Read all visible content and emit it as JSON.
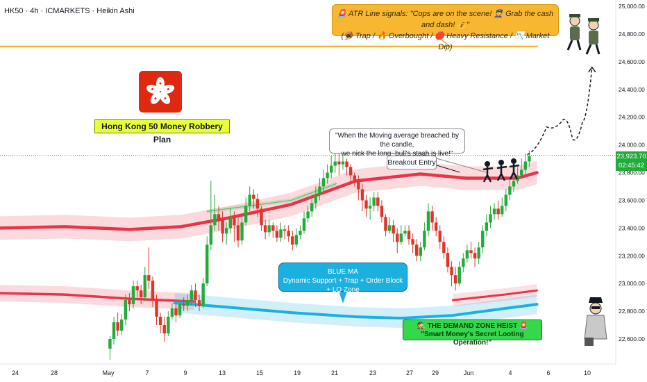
{
  "header": {
    "symbol": "HK50 · 4h · ICMARKETS · Heikin Ashi"
  },
  "price_tag": {
    "price": "23,923.70",
    "countdown": "02:45:42"
  },
  "notes": {
    "atr_line1": "🚨 ATR Line signals: \"Cops are on the scene! 👮 Grab the cash and dash! 💰\"",
    "atr_line2": "(🪤 Trap / 🔥 Overbought / 🛑 Heavy Resistance / 📉 Market Dip)",
    "plan_label": "Hong Kong 50 Money Robbery Plan",
    "ma_note_line1": "\"When the Moving average breached by the candle,",
    "ma_note_line2": "we nick the long−bull's stash is live!\"",
    "breakout": "Breakout Entry",
    "blue_ma_title": "BLUE MA",
    "blue_ma_body": "Dynamic Support + Trap + Order Block + LQ Zone",
    "demand_line1": "🕵 THE DEMAND ZONE HEIST 🚨",
    "demand_line2": "\"Smart Money's Secret Looting Operation!\""
  },
  "colors": {
    "bull": "#22ab3a",
    "bear": "#e0342a",
    "red_ma": "#e8344a",
    "blue_ma": "#1ab0e0",
    "atr_line": "#f7b731",
    "current_price_line": "#22ab3a"
  },
  "chart_data": {
    "type": "candlestick",
    "ylim": [
      22450,
      25050
    ],
    "y_ticks": [
      "25,000.00",
      "24,800.00",
      "24,600.00",
      "24,400.00",
      "24,200.00",
      "24,000.00",
      "23,800.00",
      "23,600.00",
      "23,400.00",
      "23,200.00",
      "23,000.00",
      "22,800.00",
      "22,600.00"
    ],
    "y_tick_values": [
      25000,
      24800,
      24600,
      24400,
      24200,
      24000,
      23800,
      23600,
      23400,
      23200,
      23000,
      22800,
      22600
    ],
    "x_ticks": [
      "24",
      "28",
      "May",
      "7",
      "9",
      "13",
      "15",
      "19",
      "21",
      "23",
      "27",
      "29",
      "Jun",
      "4",
      "6",
      "10"
    ],
    "atr_level": 24710,
    "current_price": 23923.7,
    "red_ma": [
      [
        0,
        23400
      ],
      [
        0.1,
        23410
      ],
      [
        0.2,
        23390
      ],
      [
        0.28,
        23410
      ],
      [
        0.35,
        23470
      ],
      [
        0.45,
        23570
      ],
      [
        0.55,
        23740
      ],
      [
        0.65,
        23790
      ],
      [
        0.72,
        23760
      ],
      [
        0.8,
        23760
      ],
      [
        0.83,
        23800
      ]
    ],
    "blue_ma": [
      [
        0.27,
        22860
      ],
      [
        0.35,
        22830
      ],
      [
        0.45,
        22790
      ],
      [
        0.55,
        22760
      ],
      [
        0.62,
        22750
      ],
      [
        0.7,
        22770
      ],
      [
        0.78,
        22820
      ],
      [
        0.83,
        22850
      ]
    ],
    "projection": [
      [
        0.815,
        23930
      ],
      [
        0.845,
        24130
      ],
      [
        0.87,
        24180
      ],
      [
        0.885,
        24040
      ],
      [
        0.9,
        24160
      ],
      [
        0.915,
        24560
      ]
    ],
    "candles": [
      [
        0.17,
        22530,
        22600,
        22450,
        22620
      ],
      [
        0.176,
        22600,
        22720,
        22560,
        22760
      ],
      [
        0.182,
        22720,
        22660,
        22620,
        22790
      ],
      [
        0.188,
        22660,
        22740,
        22630,
        22780
      ],
      [
        0.194,
        22740,
        22880,
        22700,
        22920
      ],
      [
        0.2,
        22880,
        22850,
        22800,
        22930
      ],
      [
        0.206,
        22850,
        22980,
        22820,
        23020
      ],
      [
        0.212,
        22980,
        22950,
        22900,
        23020
      ],
      [
        0.218,
        22950,
        22900,
        22850,
        22990
      ],
      [
        0.224,
        22900,
        23060,
        22870,
        23120
      ],
      [
        0.23,
        23060,
        23020,
        22960,
        23260
      ],
      [
        0.236,
        23020,
        22880,
        22830,
        23050
      ],
      [
        0.242,
        22880,
        22760,
        22700,
        22920
      ],
      [
        0.248,
        22760,
        22700,
        22640,
        22790
      ],
      [
        0.254,
        22700,
        22640,
        22580,
        22760
      ],
      [
        0.26,
        22640,
        22760,
        22620,
        22800
      ],
      [
        0.266,
        22760,
        22820,
        22740,
        22860
      ],
      [
        0.272,
        22820,
        22770,
        22720,
        22860
      ],
      [
        0.278,
        22770,
        22850,
        22750,
        22880
      ],
      [
        0.284,
        22850,
        22840,
        22800,
        22900
      ],
      [
        0.29,
        22840,
        22880,
        22800,
        22920
      ],
      [
        0.296,
        22880,
        22950,
        22840,
        22990
      ],
      [
        0.302,
        22950,
        22880,
        22830,
        23000
      ],
      [
        0.308,
        22880,
        22840,
        22800,
        22920
      ],
      [
        0.314,
        22840,
        23000,
        22820,
        23040
      ],
      [
        0.32,
        23000,
        23280,
        22980,
        23340
      ],
      [
        0.326,
        23280,
        23420,
        23240,
        23740
      ],
      [
        0.332,
        23420,
        23500,
        23380,
        23640
      ],
      [
        0.338,
        23500,
        23460,
        23380,
        23560
      ],
      [
        0.344,
        23460,
        23360,
        23300,
        23520
      ],
      [
        0.35,
        23360,
        23400,
        23280,
        23440
      ],
      [
        0.356,
        23400,
        23480,
        23360,
        23540
      ],
      [
        0.362,
        23480,
        23420,
        23300,
        23520
      ],
      [
        0.368,
        23420,
        23310,
        23260,
        23480
      ],
      [
        0.374,
        23310,
        23440,
        23280,
        23500
      ],
      [
        0.38,
        23440,
        23560,
        23420,
        23620
      ],
      [
        0.386,
        23560,
        23640,
        23520,
        23700
      ],
      [
        0.392,
        23640,
        23610,
        23540,
        23680
      ],
      [
        0.398,
        23610,
        23540,
        23480,
        23650
      ],
      [
        0.404,
        23540,
        23420,
        23380,
        23560
      ],
      [
        0.41,
        23420,
        23370,
        23320,
        23460
      ],
      [
        0.416,
        23370,
        23420,
        23340,
        23460
      ],
      [
        0.422,
        23420,
        23380,
        23330,
        23440
      ],
      [
        0.428,
        23380,
        23330,
        23300,
        23420
      ],
      [
        0.434,
        23330,
        23390,
        23300,
        23440
      ],
      [
        0.44,
        23390,
        23380,
        23320,
        23420
      ],
      [
        0.446,
        23380,
        23340,
        23300,
        23420
      ],
      [
        0.452,
        23340,
        23280,
        23240,
        23380
      ],
      [
        0.458,
        23280,
        23350,
        23260,
        23400
      ],
      [
        0.464,
        23350,
        23380,
        23320,
        23420
      ],
      [
        0.47,
        23380,
        23470,
        23360,
        23520
      ],
      [
        0.476,
        23470,
        23520,
        23440,
        23560
      ],
      [
        0.482,
        23520,
        23580,
        23480,
        23640
      ],
      [
        0.488,
        23580,
        23640,
        23540,
        23700
      ],
      [
        0.494,
        23640,
        23700,
        23600,
        23760
      ],
      [
        0.5,
        23700,
        23760,
        23660,
        23820
      ],
      [
        0.506,
        23760,
        23800,
        23720,
        23860
      ],
      [
        0.512,
        23800,
        23850,
        23760,
        23920
      ],
      [
        0.518,
        23850,
        23880,
        23800,
        23960
      ],
      [
        0.524,
        23880,
        23860,
        23780,
        23940
      ],
      [
        0.53,
        23860,
        23880,
        23820,
        23920
      ],
      [
        0.536,
        23880,
        23840,
        23780,
        23900
      ],
      [
        0.542,
        23840,
        23780,
        23740,
        23860
      ],
      [
        0.548,
        23780,
        23740,
        23700,
        23800
      ],
      [
        0.554,
        23740,
        23680,
        23600,
        23780
      ],
      [
        0.56,
        23680,
        23600,
        23520,
        23720
      ],
      [
        0.566,
        23600,
        23540,
        23480,
        23640
      ],
      [
        0.572,
        23540,
        23560,
        23460,
        23620
      ],
      [
        0.578,
        23560,
        23620,
        23520,
        23660
      ],
      [
        0.584,
        23620,
        23560,
        23520,
        23660
      ],
      [
        0.59,
        23560,
        23480,
        23440,
        23600
      ],
      [
        0.596,
        23480,
        23380,
        23340,
        23500
      ],
      [
        0.602,
        23380,
        23420,
        23360,
        23480
      ],
      [
        0.608,
        23420,
        23360,
        23300,
        23460
      ],
      [
        0.614,
        23360,
        23300,
        23220,
        23400
      ],
      [
        0.62,
        23300,
        23360,
        23280,
        23420
      ],
      [
        0.626,
        23360,
        23380,
        23340,
        23420
      ],
      [
        0.632,
        23380,
        23320,
        23280,
        23420
      ],
      [
        0.638,
        23320,
        23280,
        23220,
        23360
      ],
      [
        0.644,
        23280,
        23200,
        23160,
        23320
      ],
      [
        0.65,
        23200,
        23260,
        23160,
        23300
      ],
      [
        0.656,
        23260,
        23380,
        23240,
        23440
      ],
      [
        0.662,
        23380,
        23520,
        23340,
        23580
      ],
      [
        0.668,
        23520,
        23440,
        23380,
        23560
      ],
      [
        0.674,
        23440,
        23380,
        23340,
        23480
      ],
      [
        0.68,
        23380,
        23300,
        23250,
        23420
      ],
      [
        0.686,
        23300,
        23220,
        23180,
        23340
      ],
      [
        0.692,
        23220,
        23120,
        23080,
        23260
      ],
      [
        0.698,
        23120,
        23060,
        22980,
        23160
      ],
      [
        0.704,
        23060,
        23000,
        22950,
        23120
      ],
      [
        0.71,
        23000,
        23120,
        22980,
        23160
      ],
      [
        0.716,
        23120,
        23180,
        23080,
        23220
      ],
      [
        0.722,
        23180,
        23240,
        23150,
        23280
      ],
      [
        0.728,
        23240,
        23220,
        23180,
        23300
      ],
      [
        0.734,
        23220,
        23180,
        23120,
        23260
      ],
      [
        0.74,
        23180,
        23260,
        23140,
        23300
      ],
      [
        0.746,
        23260,
        23380,
        23220,
        23420
      ],
      [
        0.752,
        23380,
        23440,
        23340,
        23500
      ],
      [
        0.758,
        23440,
        23500,
        23400,
        23560
      ],
      [
        0.764,
        23500,
        23540,
        23460,
        23580
      ],
      [
        0.77,
        23540,
        23500,
        23460,
        23600
      ],
      [
        0.776,
        23500,
        23560,
        23480,
        23620
      ],
      [
        0.782,
        23560,
        23640,
        23520,
        23680
      ],
      [
        0.788,
        23640,
        23700,
        23600,
        23760
      ],
      [
        0.794,
        23700,
        23740,
        23660,
        23800
      ],
      [
        0.8,
        23740,
        23780,
        23720,
        23840
      ],
      [
        0.806,
        23780,
        23820,
        23760,
        23900
      ],
      [
        0.812,
        23820,
        23880,
        23790,
        23940
      ],
      [
        0.818,
        23880,
        23920,
        23840,
        23960
      ]
    ]
  }
}
